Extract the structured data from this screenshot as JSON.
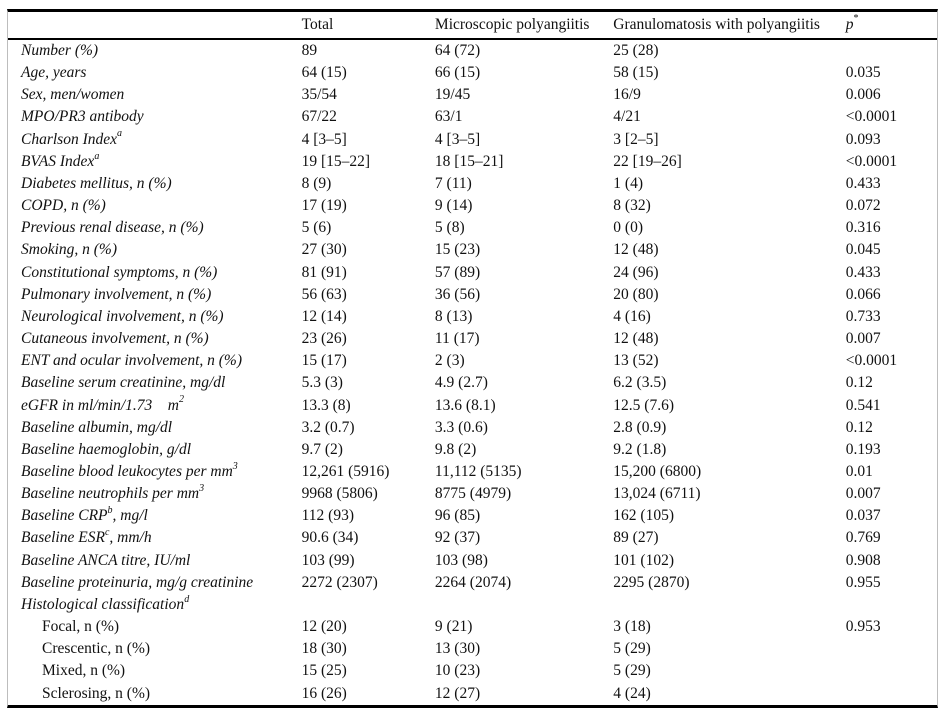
{
  "table": {
    "header": {
      "label": "",
      "total": "Total",
      "mpa": "Microscopic polyangiitis",
      "gpa": "Granulomatosis with polyangiitis",
      "p": "p",
      "p_sup": "*"
    },
    "rows": [
      {
        "pre": "Number (%)",
        "sup": "",
        "post": "",
        "total": "89",
        "mpa": "64 (72)",
        "gpa": "25 (28)",
        "p": "",
        "italic": true,
        "indent": false
      },
      {
        "pre": "Age, years",
        "sup": "",
        "post": "",
        "total": "64 (15)",
        "mpa": "66 (15)",
        "gpa": "58 (15)",
        "p": "0.035",
        "italic": true,
        "indent": false
      },
      {
        "pre": "Sex, men/women",
        "sup": "",
        "post": "",
        "total": "35/54",
        "mpa": "19/45",
        "gpa": "16/9",
        "p": "0.006",
        "italic": true,
        "indent": false
      },
      {
        "pre": "MPO/PR3 antibody",
        "sup": "",
        "post": "",
        "total": "67/22",
        "mpa": "63/1",
        "gpa": "4/21",
        "p": "<0.0001",
        "italic": true,
        "indent": false
      },
      {
        "pre": "Charlson Index",
        "sup": "a",
        "post": "",
        "total": "4 [3–5]",
        "mpa": "4 [3–5]",
        "gpa": "3 [2–5]",
        "p": "0.093",
        "italic": true,
        "indent": false
      },
      {
        "pre": "BVAS Index",
        "sup": "a",
        "post": "",
        "total": "19 [15–22]",
        "mpa": "18 [15–21]",
        "gpa": "22 [19–26]",
        "p": "<0.0001",
        "italic": true,
        "indent": false
      },
      {
        "pre": "Diabetes mellitus, n (%)",
        "sup": "",
        "post": "",
        "total": "8 (9)",
        "mpa": "7 (11)",
        "gpa": "1 (4)",
        "p": "0.433",
        "italic": true,
        "indent": false
      },
      {
        "pre": "COPD, n (%)",
        "sup": "",
        "post": "",
        "total": "17 (19)",
        "mpa": "9 (14)",
        "gpa": "8 (32)",
        "p": "0.072",
        "italic": true,
        "indent": false
      },
      {
        "pre": "Previous renal disease, n (%)",
        "sup": "",
        "post": "",
        "total": "5 (6)",
        "mpa": "5 (8)",
        "gpa": "0 (0)",
        "p": "0.316",
        "italic": true,
        "indent": false
      },
      {
        "pre": "Smoking, n (%)",
        "sup": "",
        "post": "",
        "total": "27 (30)",
        "mpa": "15 (23)",
        "gpa": "12 (48)",
        "p": "0.045",
        "italic": true,
        "indent": false
      },
      {
        "pre": "Constitutional symptoms, n (%)",
        "sup": "",
        "post": "",
        "total": "81 (91)",
        "mpa": "57 (89)",
        "gpa": "24 (96)",
        "p": "0.433",
        "italic": true,
        "indent": false
      },
      {
        "pre": "Pulmonary involvement, n (%)",
        "sup": "",
        "post": "",
        "total": "56 (63)",
        "mpa": "36 (56)",
        "gpa": "20 (80)",
        "p": "0.066",
        "italic": true,
        "indent": false
      },
      {
        "pre": "Neurological involvement, n (%)",
        "sup": "",
        "post": "",
        "total": "12 (14)",
        "mpa": "8 (13)",
        "gpa": "4 (16)",
        "p": "0.733",
        "italic": true,
        "indent": false
      },
      {
        "pre": "Cutaneous involvement, n (%)",
        "sup": "",
        "post": "",
        "total": "23 (26)",
        "mpa": "11 (17)",
        "gpa": "12 (48)",
        "p": "0.007",
        "italic": true,
        "indent": false
      },
      {
        "pre": "ENT and ocular involvement, n (%)",
        "sup": "",
        "post": "",
        "total": "15 (17)",
        "mpa": "2 (3)",
        "gpa": "13 (52)",
        "p": "<0.0001",
        "italic": true,
        "indent": false
      },
      {
        "pre": "Baseline serum creatinine, mg/dl",
        "sup": "",
        "post": "",
        "total": "5.3 (3)",
        "mpa": "4.9 (2.7)",
        "gpa": "6.2 (3.5)",
        "p": "0.12",
        "italic": true,
        "indent": false
      },
      {
        "pre": "eGFR in ml/min/1.73    m",
        "sup": "2",
        "post": "",
        "total": "13.3 (8)",
        "mpa": "13.6 (8.1)",
        "gpa": "12.5 (7.6)",
        "p": "0.541",
        "italic": true,
        "indent": false
      },
      {
        "pre": "Baseline albumin, mg/dl",
        "sup": "",
        "post": "",
        "total": "3.2 (0.7)",
        "mpa": "3.3 (0.6)",
        "gpa": "2.8 (0.9)",
        "p": "0.12",
        "italic": true,
        "indent": false
      },
      {
        "pre": "Baseline haemoglobin, g/dl",
        "sup": "",
        "post": "",
        "total": "9.7 (2)",
        "mpa": "9.8 (2)",
        "gpa": "9.2 (1.8)",
        "p": "0.193",
        "italic": true,
        "indent": false
      },
      {
        "pre": "Baseline blood leukocytes per mm",
        "sup": "3",
        "post": "",
        "total": "12,261 (5916)",
        "mpa": "11,112 (5135)",
        "gpa": "15,200 (6800)",
        "p": "0.01",
        "italic": true,
        "indent": false
      },
      {
        "pre": "Baseline neutrophils per mm",
        "sup": "3",
        "post": "",
        "total": "9968 (5806)",
        "mpa": "8775 (4979)",
        "gpa": "13,024 (6711)",
        "p": "0.007",
        "italic": true,
        "indent": false
      },
      {
        "pre": "Baseline CRP",
        "sup": "b",
        "post": ", mg/l",
        "total": "112 (93)",
        "mpa": "96 (85)",
        "gpa": "162 (105)",
        "p": "0.037",
        "italic": true,
        "indent": false
      },
      {
        "pre": "Baseline ESR",
        "sup": "c",
        "post": ", mm/h",
        "total": "90.6 (34)",
        "mpa": "92 (37)",
        "gpa": "89 (27)",
        "p": "0.769",
        "italic": true,
        "indent": false
      },
      {
        "pre": "Baseline ANCA titre, IU/ml",
        "sup": "",
        "post": "",
        "total": "103 (99)",
        "mpa": "103 (98)",
        "gpa": "101 (102)",
        "p": "0.908",
        "italic": true,
        "indent": false
      },
      {
        "pre": "Baseline proteinuria, mg/g creatinine",
        "sup": "",
        "post": "",
        "total": "2272 (2307)",
        "mpa": "2264 (2074)",
        "gpa": "2295 (2870)",
        "p": "0.955",
        "italic": true,
        "indent": false
      },
      {
        "pre": "Histological classification",
        "sup": "d",
        "post": "",
        "total": "",
        "mpa": "",
        "gpa": "",
        "p": "",
        "italic": true,
        "indent": false
      },
      {
        "pre": "Focal, n (%)",
        "sup": "",
        "post": "",
        "total": "12 (20)",
        "mpa": "9 (21)",
        "gpa": "3 (18)",
        "p": "0.953",
        "italic": false,
        "indent": true
      },
      {
        "pre": "Crescentic, n (%)",
        "sup": "",
        "post": "",
        "total": "18 (30)",
        "mpa": "13 (30)",
        "gpa": "5 (29)",
        "p": "",
        "italic": false,
        "indent": true
      },
      {
        "pre": "Mixed, n (%)",
        "sup": "",
        "post": "",
        "total": "15 (25)",
        "mpa": "10 (23)",
        "gpa": "5 (29)",
        "p": "",
        "italic": false,
        "indent": true
      },
      {
        "pre": "Sclerosing, n (%)",
        "sup": "",
        "post": "",
        "total": "16 (26)",
        "mpa": "12 (27)",
        "gpa": "4 (24)",
        "p": "",
        "italic": false,
        "indent": true
      }
    ]
  }
}
